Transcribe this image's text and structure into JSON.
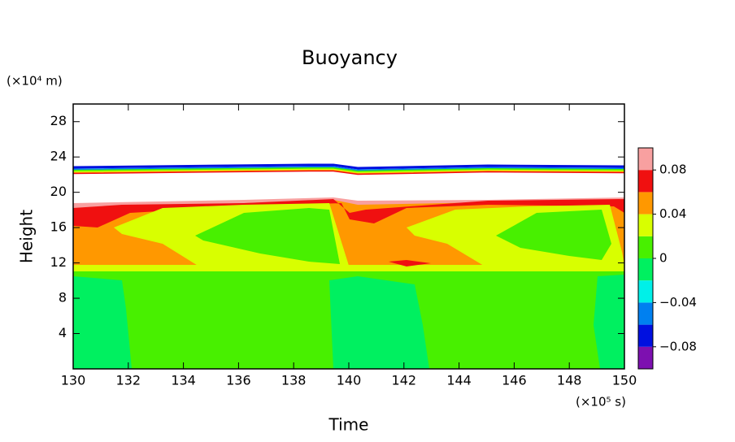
{
  "chart_data": {
    "type": "contour",
    "title": "Buoyancy",
    "xlabel": "Time",
    "ylabel": "Height",
    "xunit": "(×10⁵ s)",
    "yunit": "(×10⁴ m)",
    "xlim": [
      130,
      150
    ],
    "xticks": [
      130,
      132,
      134,
      136,
      138,
      140,
      142,
      144,
      146,
      148,
      150
    ],
    "ylim": [
      0,
      30
    ],
    "yticks": [
      4,
      8,
      12,
      16,
      20,
      24,
      28
    ],
    "colorbar": {
      "levels": [
        -0.1,
        -0.08,
        -0.06,
        -0.04,
        -0.02,
        0,
        0.02,
        0.04,
        0.06,
        0.08,
        0.1
      ],
      "colors": [
        "#7d10b0",
        "#0010e0",
        "#0080f0",
        "#00f0e8",
        "#00f060",
        "#48f000",
        "#d8ff00",
        "#ff9800",
        "#f01010",
        "#f8a0a0"
      ],
      "ticks": [
        {
          "value": -0.08,
          "label": "−0.08"
        },
        {
          "value": -0.04,
          "label": "−0.04"
        },
        0,
        0.04,
        0.08
      ]
    }
  }
}
